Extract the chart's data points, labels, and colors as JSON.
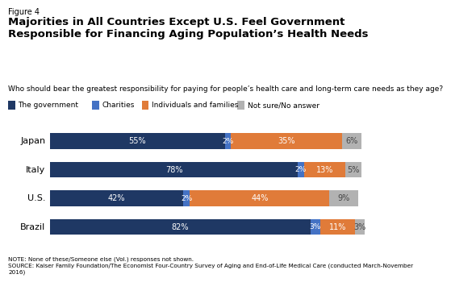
{
  "figure_label": "Figure 4",
  "title": "Majorities in All Countries Except U.S. Feel Government\nResponsible for Financing Aging Population’s Health Needs",
  "subtitle": "Who should bear the greatest responsibility for paying for people’s health care and long-term care needs as they age?",
  "countries": [
    "Japan",
    "Italy",
    "U.S.",
    "Brazil"
  ],
  "segments": {
    "government": [
      55,
      78,
      42,
      82
    ],
    "charities": [
      2,
      2,
      2,
      3
    ],
    "individuals": [
      35,
      13,
      44,
      11
    ],
    "notsure": [
      6,
      5,
      9,
      3
    ]
  },
  "colors": {
    "government": "#1f3864",
    "charities": "#4472c4",
    "individuals": "#e07b39",
    "notsure": "#b2b2b2"
  },
  "legend_labels": [
    "The government",
    "Charities",
    "Individuals and families",
    "Not sure/No answer"
  ],
  "note": "NOTE: None of these/Someone else (Vol.) responses not shown.\nSOURCE: Kaiser Family Foundation/The Economist Four-Country Survey of Aging and End-of-Life Medical Care (conducted March-November\n2016)",
  "bar_height": 0.55,
  "background_color": "#ffffff"
}
